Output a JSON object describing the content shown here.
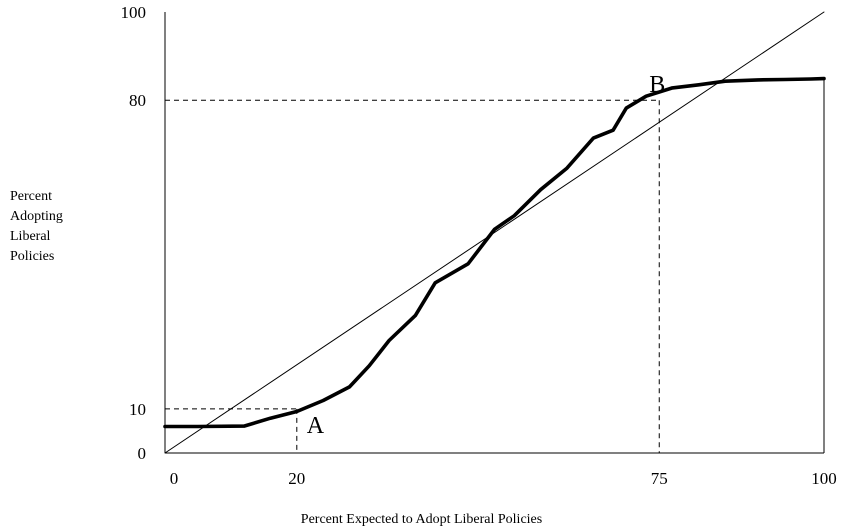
{
  "chart_data": {
    "type": "line",
    "title": "",
    "xlabel": "Percent Expected to Adopt Liberal Policies",
    "ylabel_lines": [
      "Percent",
      "Adopting",
      "Liberal",
      "Policies"
    ],
    "x_ticks": [
      {
        "label": "0",
        "position": 0
      },
      {
        "label": "20",
        "position": 20
      },
      {
        "label": "75",
        "position": 75
      },
      {
        "label": "100",
        "position": 100
      }
    ],
    "y_ticks": [
      {
        "label": "0",
        "position": 0
      },
      {
        "label": "10",
        "position": 10
      },
      {
        "label": "80",
        "position": 80
      },
      {
        "label": "100",
        "position": 100
      }
    ],
    "xlim": [
      0,
      100
    ],
    "ylim": [
      0,
      100
    ],
    "grid": false,
    "series": [
      {
        "style": "thick",
        "x": [
          0,
          5,
          12,
          16,
          20,
          24,
          28,
          31,
          34,
          38,
          41,
          46,
          50,
          53,
          57,
          61,
          65,
          68,
          70,
          73,
          77,
          81,
          85,
          90,
          94,
          98,
          100
        ],
        "y": [
          6,
          6,
          6.1,
          7.9,
          9.4,
          11.9,
          15,
          19.8,
          25.5,
          31.2,
          38.6,
          42.9,
          50.7,
          53.8,
          59.7,
          64.6,
          71.4,
          73.2,
          78.2,
          80.9,
          82.8,
          83.5,
          84.3,
          84.6,
          84.7,
          84.8,
          84.9
        ]
      },
      {
        "style": "thin",
        "x": [
          0,
          100
        ],
        "y": [
          0,
          100
        ]
      }
    ],
    "reference_lines": [
      {
        "point": "A",
        "x": 20,
        "y": 10
      },
      {
        "point": "B",
        "x": 75,
        "y": 80
      }
    ],
    "annotations": [
      {
        "label": "A",
        "x": 20,
        "y": 10
      },
      {
        "label": "B",
        "x": 75,
        "y": 80
      }
    ]
  }
}
